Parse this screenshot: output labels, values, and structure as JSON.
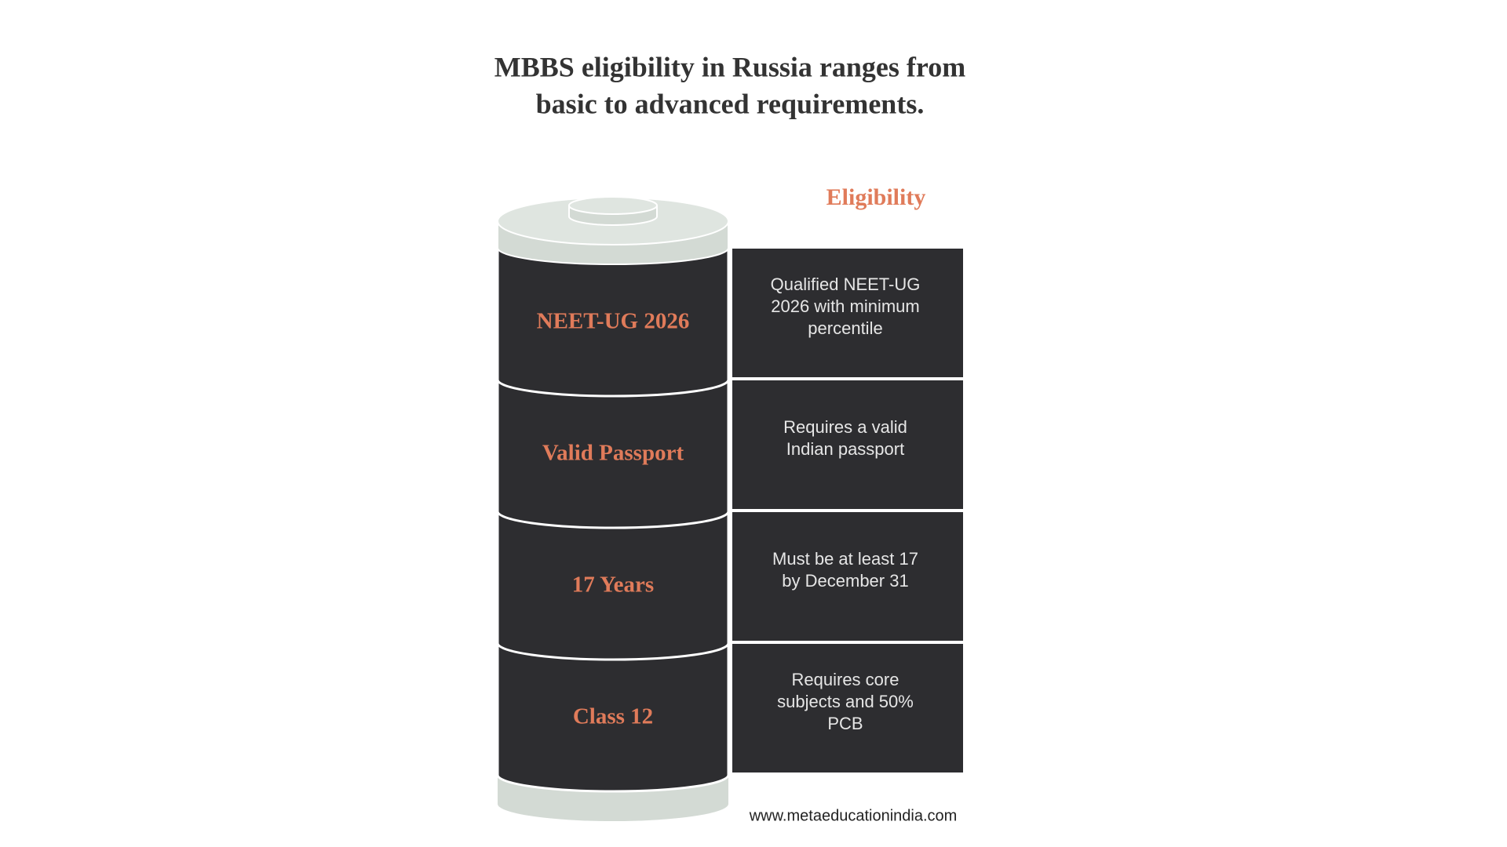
{
  "title": [
    "MBBS eligibility in Russia ranges from",
    "basic to advanced requirements."
  ],
  "heading": "Eligibility",
  "rows": [
    {
      "label": "NEET-UG 2026",
      "description": [
        "Qualified NEET-UG",
        "2026 with minimum",
        "percentile"
      ]
    },
    {
      "label": "Valid Passport",
      "description": [
        "Requires a valid",
        "Indian passport"
      ]
    },
    {
      "label": "17 Years",
      "description": [
        "Must be at least 17",
        "by December 31"
      ]
    },
    {
      "label": "Class 12",
      "description": [
        "Requires core",
        "subjects and 50%",
        "PCB"
      ]
    }
  ],
  "footer": "www.metaeducationindia.com"
}
